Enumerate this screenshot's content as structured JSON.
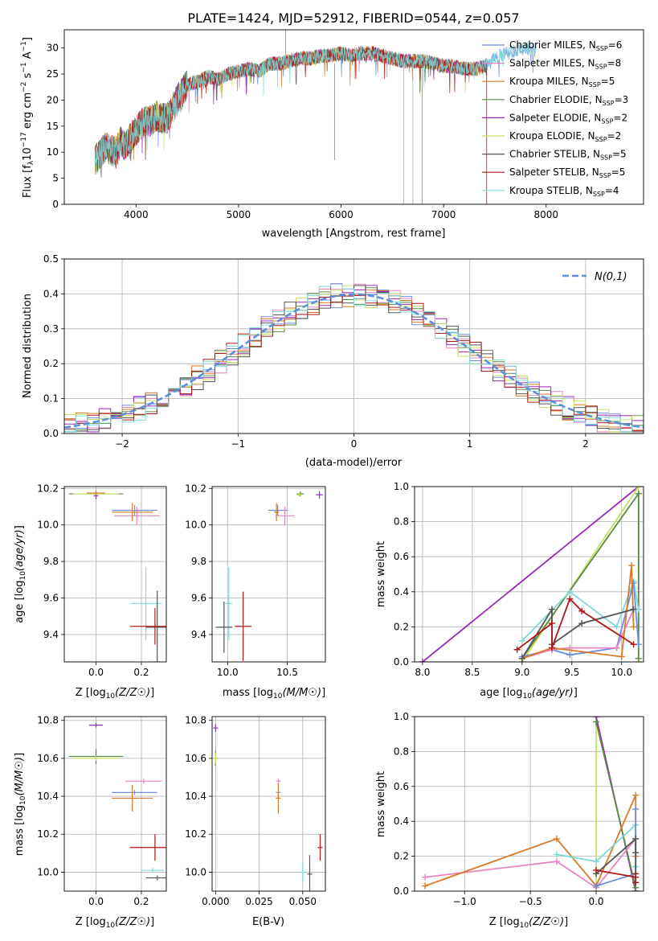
{
  "figure": {
    "title": "PLATE=1424, MJD=52912, FIBERID=0544, z=0.057"
  },
  "colors": {
    "Chabrier MILES": "#6a8fe0",
    "Salpeter MILES": "#e884c4",
    "Kroupa MILES": "#d97b2a",
    "Chabrier ELODIE": "#5a8a4a",
    "Salpeter ELODIE": "#9a2ab8",
    "Kroupa ELODIE": "#c8e060",
    "Chabrier STELIB": "#555555",
    "Salpeter STELIB": "#b01818",
    "Kroupa STELIB": "#7fdada"
  },
  "chart_data": [
    {
      "id": "spectrum",
      "type": "line",
      "title": "PLATE=1424, MJD=52912, FIBERID=0544, z=0.057",
      "xlabel": "wavelength [Angstrom, rest frame]",
      "ylabel": "Flux [f_λ10^-17 erg cm^-2 s^-1 A^-1]",
      "xlim": [
        3300,
        8950
      ],
      "ylim": [
        0,
        33.5
      ],
      "xticks": [
        4000,
        5000,
        6000,
        7000,
        8000
      ],
      "yticks": [
        0,
        5,
        10,
        15,
        20,
        25,
        30
      ],
      "grid": false,
      "legend": "upper right",
      "anchors": [
        [
          3600,
          8.5
        ],
        [
          3650,
          9.5
        ],
        [
          3700,
          11
        ],
        [
          3750,
          10.5
        ],
        [
          3800,
          10
        ],
        [
          3850,
          12
        ],
        [
          3900,
          11
        ],
        [
          3950,
          13
        ],
        [
          4000,
          14
        ],
        [
          4050,
          15.5
        ],
        [
          4100,
          16
        ],
        [
          4150,
          16
        ],
        [
          4200,
          17
        ],
        [
          4250,
          16.5
        ],
        [
          4300,
          16.5
        ],
        [
          4350,
          18
        ],
        [
          4400,
          20
        ],
        [
          4450,
          21.5
        ],
        [
          4500,
          23
        ],
        [
          4600,
          23.5
        ],
        [
          4700,
          24.5
        ],
        [
          4800,
          24
        ],
        [
          4900,
          25
        ],
        [
          5000,
          25.5
        ],
        [
          5100,
          26
        ],
        [
          5200,
          25.5
        ],
        [
          5300,
          27
        ],
        [
          5400,
          27
        ],
        [
          5500,
          27.5
        ],
        [
          5600,
          28
        ],
        [
          5700,
          28
        ],
        [
          5800,
          28.5
        ],
        [
          5900,
          28.5
        ],
        [
          6000,
          29
        ],
        [
          6100,
          28.5
        ],
        [
          6200,
          29
        ],
        [
          6300,
          29
        ],
        [
          6400,
          28.5
        ],
        [
          6500,
          28
        ],
        [
          6600,
          27.5
        ],
        [
          6700,
          27.5
        ],
        [
          6800,
          27.5
        ],
        [
          6900,
          27
        ],
        [
          7000,
          26.5
        ],
        [
          7100,
          26.5
        ],
        [
          7200,
          26
        ],
        [
          7300,
          26
        ],
        [
          7400,
          26.5
        ],
        [
          7500,
          28
        ],
        [
          7600,
          29
        ],
        [
          7700,
          29.5
        ],
        [
          7800,
          30
        ],
        [
          7900,
          29.5
        ]
      ],
      "series": [
        {
          "name": "Chabrier MILES",
          "label": "Chabrier MILES, N",
          "sub": "SSP",
          "n": "=6",
          "color": "#6a8fe0"
        },
        {
          "name": "Salpeter MILES",
          "label": "Salpeter MILES, N",
          "sub": "SSP",
          "n": "=8",
          "color": "#e884c4"
        },
        {
          "name": "Kroupa MILES",
          "label": "Kroupa MILES, N",
          "sub": "SSP",
          "n": "=5",
          "color": "#d97b2a"
        },
        {
          "name": "Chabrier ELODIE",
          "label": "Chabrier ELODIE, N",
          "sub": "SSP",
          "n": "=3",
          "color": "#5a8a4a"
        },
        {
          "name": "Salpeter ELODIE",
          "label": "Salpeter ELODIE, N",
          "sub": "SSP",
          "n": "=2",
          "color": "#9a2ab8"
        },
        {
          "name": "Kroupa ELODIE",
          "label": "Kroupa ELODIE, N",
          "sub": "SSP",
          "n": "=2",
          "color": "#c8e060"
        },
        {
          "name": "Chabrier STELIB",
          "label": "Chabrier STELIB, N",
          "sub": "SSP",
          "n": "=5",
          "color": "#555555"
        },
        {
          "name": "Salpeter STELIB",
          "label": "Salpeter STELIB, N",
          "sub": "SSP",
          "n": "=5",
          "color": "#b01818"
        },
        {
          "name": "Kroupa STELIB",
          "label": "Kroupa STELIB, N",
          "sub": "SSP",
          "n": "=4",
          "color": "#7fdada"
        }
      ]
    },
    {
      "id": "residuals",
      "type": "histogram",
      "xlabel": "(data-model)/error",
      "ylabel": "Normed distribution",
      "xlim": [
        -2.5,
        2.5
      ],
      "ylim": [
        0,
        0.5
      ],
      "xticks": [
        -2,
        -1,
        0,
        1,
        2
      ],
      "yticks": [
        0.0,
        0.1,
        0.2,
        0.3,
        0.4,
        0.5
      ],
      "grid": true,
      "legend": "upper right",
      "bin_width": 0.1,
      "reference": {
        "label": "N(0,1)",
        "color": "#5b8fd9"
      },
      "series_colors": [
        "#6a8fe0",
        "#e884c4",
        "#d97b2a",
        "#5a8a4a",
        "#9a2ab8",
        "#c8e060",
        "#555555",
        "#b01818",
        "#7fdada"
      ]
    },
    {
      "id": "age_vs_Z",
      "type": "errorbar",
      "xlabel": "Z [log10(Z/Z⊙)]",
      "ylabel": "age  [log10(age/yr)]",
      "xlim": [
        -0.14,
        0.31
      ],
      "ylim": [
        9.25,
        10.21
      ],
      "xticks": [
        0.0,
        0.2
      ],
      "yticks": [
        9.4,
        9.6,
        9.8,
        10.0,
        10.2
      ],
      "grid": true,
      "points": [
        {
          "color": "#5a8a4a",
          "x": 0.0,
          "xerr": 0.12,
          "y": 10.17,
          "yerr": 0.0
        },
        {
          "color": "#c8e060",
          "x": 0.0,
          "xerr": 0.1,
          "y": 10.17,
          "yerr": 0.0
        },
        {
          "color": "#9a2ab8",
          "x": 0.0,
          "xerr": 0.0,
          "y": 10.16,
          "yerr": 0.02
        },
        {
          "color": "#d97b2a",
          "x": 0.0,
          "xerr": 0.04,
          "y": 10.175,
          "yerr": 0.0
        },
        {
          "color": "#6a8fe0",
          "x": 0.17,
          "xerr": 0.1,
          "y": 10.08,
          "yerr": 0.03
        },
        {
          "color": "#e884c4",
          "x": 0.18,
          "xerr": 0.1,
          "y": 10.05,
          "yerr": 0.05
        },
        {
          "color": "#d97b2a",
          "x": 0.16,
          "xerr": 0.09,
          "y": 10.07,
          "yerr": 0.05
        },
        {
          "color": "#7fdada",
          "x": 0.22,
          "xerr": 0.07,
          "y": 9.57,
          "yerr": 0.2
        },
        {
          "color": "#555555",
          "x": 0.27,
          "xerr": 0.05,
          "y": 9.44,
          "yerr": 0.2
        },
        {
          "color": "#b01818",
          "x": 0.26,
          "xerr": 0.11,
          "y": 9.445,
          "yerr": 0.1
        }
      ]
    },
    {
      "id": "age_vs_mass",
      "type": "errorbar",
      "xlabel": "mass [log10(M/M⊙)]",
      "ylabel": "",
      "xlim": [
        9.87,
        10.82
      ],
      "ylim": [
        9.25,
        10.21
      ],
      "xticks": [
        10.0,
        10.5
      ],
      "yticks": [
        9.4,
        9.6,
        9.8,
        10.0,
        10.2
      ],
      "grid": true,
      "points": [
        {
          "color": "#5a8a4a",
          "x": 10.61,
          "xerr": 0.03,
          "y": 10.17,
          "yerr": 0.0
        },
        {
          "color": "#c8e060",
          "x": 10.6,
          "xerr": 0.0,
          "y": 10.165,
          "yerr": 0.01
        },
        {
          "color": "#9a2ab8",
          "x": 10.77,
          "xerr": 0.03,
          "y": 10.165,
          "yerr": 0.02
        },
        {
          "color": "#6a8fe0",
          "x": 10.42,
          "xerr": 0.08,
          "y": 10.08,
          "yerr": 0.03
        },
        {
          "color": "#e884c4",
          "x": 10.48,
          "xerr": 0.08,
          "y": 10.05,
          "yerr": 0.05
        },
        {
          "color": "#d97b2a",
          "x": 10.41,
          "xerr": 0.02,
          "y": 10.07,
          "yerr": 0.05
        },
        {
          "color": "#7fdada",
          "x": 10.01,
          "xerr": 0.03,
          "y": 9.57,
          "yerr": 0.2
        },
        {
          "color": "#555555",
          "x": 9.97,
          "xerr": 0.07,
          "y": 9.44,
          "yerr": 0.14
        },
        {
          "color": "#b01818",
          "x": 10.13,
          "xerr": 0.07,
          "y": 9.445,
          "yerr": 0.19
        }
      ]
    },
    {
      "id": "massweight_vs_age",
      "type": "line",
      "xlabel": "age  [log10(age/yr)]",
      "ylabel": "mass weight",
      "xlim": [
        7.92,
        10.22
      ],
      "ylim": [
        0,
        1.0
      ],
      "xticks": [
        8.0,
        8.5,
        9.0,
        9.5,
        10.0
      ],
      "yticks": [
        0.0,
        0.2,
        0.4,
        0.6,
        0.8,
        1.0
      ],
      "grid": true,
      "series": [
        {
          "color": "#9a2ab8",
          "x": [
            8.0,
            10.17
          ],
          "y": [
            0.0,
            1.0
          ]
        },
        {
          "color": "#c8e060",
          "x": [
            9.0,
            10.17,
            10.17
          ],
          "y": [
            0.0,
            1.0,
            0.0
          ]
        },
        {
          "color": "#5a8a4a",
          "x": [
            9.0,
            10.17,
            10.17
          ],
          "y": [
            0.02,
            0.96,
            0.02
          ]
        },
        {
          "color": "#7fdada",
          "x": [
            9.0,
            9.48,
            9.95,
            10.12,
            10.17
          ],
          "y": [
            0.12,
            0.4,
            0.2,
            0.46,
            0.3
          ]
        },
        {
          "color": "#6a8fe0",
          "x": [
            9.0,
            9.3,
            9.48,
            9.95,
            10.12,
            10.17
          ],
          "y": [
            0.03,
            0.07,
            0.04,
            0.08,
            0.45,
            0.1
          ]
        },
        {
          "color": "#e884c4",
          "x": [
            9.0,
            9.3,
            9.48,
            9.95,
            10.12
          ],
          "y": [
            0.02,
            0.07,
            0.08,
            0.08,
            0.3
          ]
        },
        {
          "color": "#d97b2a",
          "x": [
            9.0,
            9.3,
            10.0,
            10.1,
            10.12
          ],
          "y": [
            0.02,
            0.08,
            0.03,
            0.55,
            0.2
          ]
        },
        {
          "color": "#555555",
          "x": [
            9.0,
            9.3,
            9.3,
            9.6,
            10.12
          ],
          "y": [
            0.02,
            0.3,
            0.1,
            0.22,
            0.3
          ]
        },
        {
          "color": "#b01818",
          "x": [
            8.95,
            9.3,
            9.3,
            9.48,
            9.6,
            10.12
          ],
          "y": [
            0.07,
            0.22,
            0.08,
            0.36,
            0.29,
            0.1
          ]
        }
      ]
    },
    {
      "id": "mass_vs_Z",
      "type": "errorbar",
      "xlabel": "Z [log10(Z/Z⊙)]",
      "ylabel": "mass [log10(M/M⊙)]",
      "xlim": [
        -0.14,
        0.31
      ],
      "ylim": [
        9.9,
        10.82
      ],
      "xticks": [
        0.0,
        0.2
      ],
      "yticks": [
        10.0,
        10.2,
        10.4,
        10.6,
        10.8
      ],
      "grid": true,
      "points": [
        {
          "color": "#9a2ab8",
          "x": 0.0,
          "xerr": 0.03,
          "y": 10.775,
          "yerr": 0.0
        },
        {
          "color": "#5a8a4a",
          "x": 0.0,
          "xerr": 0.12,
          "y": 10.61,
          "yerr": 0.04
        },
        {
          "color": "#c8e060",
          "x": 0.0,
          "xerr": 0.1,
          "y": 10.6,
          "yerr": 0.0
        },
        {
          "color": "#e884c4",
          "x": 0.21,
          "xerr": 0.08,
          "y": 10.48,
          "yerr": 0.0
        },
        {
          "color": "#6a8fe0",
          "x": 0.17,
          "xerr": 0.1,
          "y": 10.42,
          "yerr": 0.0
        },
        {
          "color": "#d97b2a",
          "x": 0.16,
          "xerr": 0.09,
          "y": 10.39,
          "yerr": 0.07
        },
        {
          "color": "#b01818",
          "x": 0.26,
          "xerr": 0.11,
          "y": 10.13,
          "yerr": 0.07
        },
        {
          "color": "#7fdada",
          "x": 0.25,
          "xerr": 0.05,
          "y": 10.01,
          "yerr": 0.0
        },
        {
          "color": "#555555",
          "x": 0.27,
          "xerr": 0.05,
          "y": 9.97,
          "yerr": 0.0
        }
      ]
    },
    {
      "id": "mass_vs_ebv",
      "type": "errorbar",
      "xlabel": "E(B-V)",
      "ylabel": "",
      "xlim": [
        -0.002,
        0.063
      ],
      "ylim": [
        9.9,
        10.82
      ],
      "xticks": [
        0.0,
        0.025,
        0.05
      ],
      "yticks": [
        10.0,
        10.2,
        10.4,
        10.6,
        10.8
      ],
      "grid": true,
      "points": [
        {
          "color": "#9a2ab8",
          "x": 0.0,
          "xerr": 0.0,
          "y": 10.76,
          "yerr": 0.02
        },
        {
          "color": "#5a8a4a",
          "x": 0.0,
          "xerr": 0.0,
          "y": 10.6,
          "yerr": 0.04
        },
        {
          "color": "#c8e060",
          "x": 0.0,
          "xerr": 0.0,
          "y": 10.6,
          "yerr": 0.03
        },
        {
          "color": "#e884c4",
          "x": 0.036,
          "xerr": 0.0,
          "y": 10.48,
          "yerr": 0.0
        },
        {
          "color": "#6a8fe0",
          "x": 0.036,
          "xerr": 0.0,
          "y": 10.42,
          "yerr": 0.0
        },
        {
          "color": "#d97b2a",
          "x": 0.036,
          "xerr": 0.0,
          "y": 10.39,
          "yerr": 0.08
        },
        {
          "color": "#b01818",
          "x": 0.06,
          "xerr": 0.0,
          "y": 10.13,
          "yerr": 0.07
        },
        {
          "color": "#7fdada",
          "x": 0.05,
          "xerr": 0.0,
          "y": 10.0,
          "yerr": 0.05
        },
        {
          "color": "#555555",
          "x": 0.054,
          "xerr": 0.0,
          "y": 9.99,
          "yerr": 0.1
        }
      ]
    },
    {
      "id": "massweight_vs_Z",
      "type": "line",
      "xlabel": "Z [log10(Z/Z⊙)]",
      "ylabel": "mass weight",
      "xlim": [
        -1.38,
        0.36
      ],
      "ylim": [
        0,
        1.0
      ],
      "xticks": [
        -1.0,
        -0.5,
        0.0
      ],
      "yticks": [
        0.0,
        0.2,
        0.4,
        0.6,
        0.8,
        1.0
      ],
      "grid": true,
      "series": [
        {
          "color": "#c8e060",
          "x": [
            0.0,
            0.0,
            0.0
          ],
          "y": [
            0.0,
            1.0,
            0.0
          ]
        },
        {
          "color": "#9a2ab8",
          "x": [
            0.0,
            0.3
          ],
          "y": [
            1.0,
            0.0
          ]
        },
        {
          "color": "#5a8a4a",
          "x": [
            0.0,
            0.3,
            0.3
          ],
          "y": [
            0.97,
            0.02,
            0.0
          ]
        },
        {
          "color": "#e884c4",
          "x": [
            -1.3,
            -0.3,
            0.0,
            0.3
          ],
          "y": [
            0.08,
            0.17,
            0.02,
            0.3
          ]
        },
        {
          "color": "#d97b2a",
          "x": [
            -1.3,
            -0.3,
            0.0,
            0.3,
            0.3
          ],
          "y": [
            0.03,
            0.3,
            0.03,
            0.55,
            0.2
          ]
        },
        {
          "color": "#7fdada",
          "x": [
            -0.3,
            0.0,
            0.3,
            0.3
          ],
          "y": [
            0.21,
            0.17,
            0.38,
            0.14
          ]
        },
        {
          "color": "#6a8fe0",
          "x": [
            0.0,
            0.3,
            0.3
          ],
          "y": [
            0.03,
            0.1,
            0.47
          ]
        },
        {
          "color": "#555555",
          "x": [
            0.0,
            0.3,
            0.3,
            0.3
          ],
          "y": [
            0.1,
            0.3,
            0.05,
            0.22
          ]
        },
        {
          "color": "#b01818",
          "x": [
            0.0,
            0.3,
            0.3,
            0.3
          ],
          "y": [
            0.12,
            0.08,
            0.05,
            0.1
          ]
        }
      ]
    }
  ]
}
